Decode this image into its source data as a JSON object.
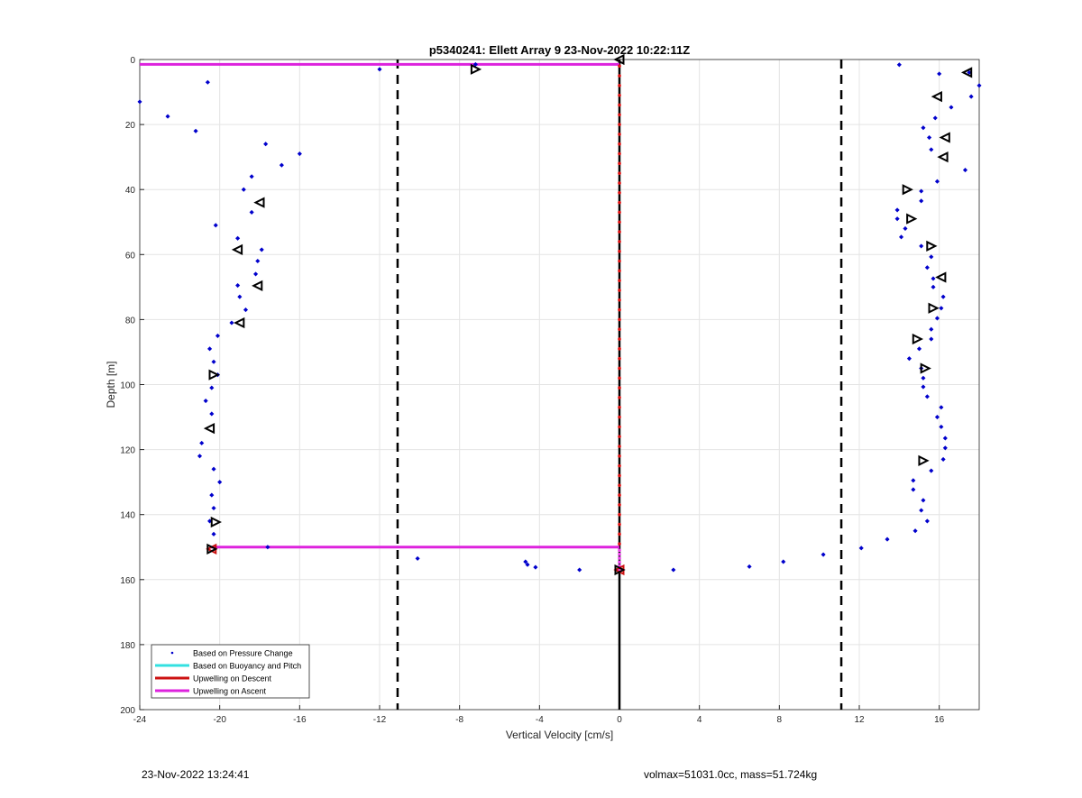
{
  "chart_data": {
    "type": "scatter",
    "title": "p5340241: Ellett Array 9 23-Nov-2022 10:22:11Z",
    "xlabel": "Vertical Velocity [cm/s]",
    "ylabel": "Depth [m]",
    "xlim": [
      -24,
      18
    ],
    "ylim": [
      0,
      200
    ],
    "y_reversed": true,
    "grid": true,
    "xticks": [
      -24,
      -20,
      -16,
      -12,
      -8,
      -4,
      0,
      4,
      8,
      12,
      16
    ],
    "yticks": [
      0,
      20,
      40,
      60,
      80,
      100,
      120,
      140,
      160,
      180,
      200
    ],
    "legend_position": "bottom-left",
    "legend": [
      {
        "label": "Based on Pressure Change",
        "color": "#0000cc",
        "kind": "dot"
      },
      {
        "label": "Based on Buoyancy and Pitch",
        "color": "#33e0e0",
        "kind": "line"
      },
      {
        "label": "Upwelling on Descent",
        "color": "#cc1111",
        "kind": "line"
      },
      {
        "label": "Upwelling on Ascent",
        "color": "#dd22dd",
        "kind": "line"
      }
    ],
    "threshold_lines": [
      -11.1,
      11.1
    ],
    "pressure_change_points": [
      [
        -20.6,
        7
      ],
      [
        -24,
        13
      ],
      [
        -22.6,
        17.5
      ],
      [
        -21.2,
        22
      ],
      [
        -17.7,
        26
      ],
      [
        -16,
        29
      ],
      [
        -16.9,
        32.5
      ],
      [
        -18.4,
        36
      ],
      [
        -18.8,
        40
      ],
      [
        -18.4,
        47
      ],
      [
        -20.2,
        51
      ],
      [
        -19.1,
        55
      ],
      [
        -17.9,
        58.5
      ],
      [
        -18.1,
        62
      ],
      [
        -18.2,
        66
      ],
      [
        -19.1,
        69.5
      ],
      [
        -19,
        73
      ],
      [
        -18.7,
        77
      ],
      [
        -19.4,
        81
      ],
      [
        -20.1,
        85
      ],
      [
        -20.5,
        89
      ],
      [
        -20.3,
        93
      ],
      [
        -20.1,
        97
      ],
      [
        -20.4,
        101
      ],
      [
        -20.7,
        105
      ],
      [
        -20.4,
        109
      ],
      [
        -20.9,
        118
      ],
      [
        -21,
        122
      ],
      [
        -20.3,
        126
      ],
      [
        -20,
        130
      ],
      [
        -20.4,
        134
      ],
      [
        -20.3,
        138
      ],
      [
        -20.5,
        142
      ],
      [
        -20.3,
        146
      ],
      [
        -17.6,
        150
      ],
      [
        -10.1,
        153.5
      ],
      [
        -4.7,
        154.5
      ],
      [
        -4.6,
        155.4
      ],
      [
        -4.2,
        156.2
      ],
      [
        -2,
        157
      ],
      [
        2.7,
        157
      ],
      [
        6.5,
        156
      ],
      [
        8.2,
        154.5
      ],
      [
        10.2,
        152.3
      ],
      [
        12.1,
        150.3
      ],
      [
        13.4,
        147.6
      ],
      [
        14.8,
        145
      ],
      [
        15.4,
        142
      ],
      [
        15.1,
        138.7
      ],
      [
        15.2,
        135.6
      ],
      [
        14.7,
        132.3
      ],
      [
        14.7,
        129.5
      ],
      [
        15.6,
        126.5
      ],
      [
        16.2,
        123
      ],
      [
        16.3,
        119.5
      ],
      [
        16.3,
        116.5
      ],
      [
        16.1,
        113
      ],
      [
        15.9,
        110
      ],
      [
        16.1,
        107
      ],
      [
        15.4,
        103.7
      ],
      [
        15.2,
        100.7
      ],
      [
        15.2,
        98
      ],
      [
        15.1,
        95
      ],
      [
        14.5,
        92
      ],
      [
        15,
        89
      ],
      [
        15.6,
        86
      ],
      [
        15.6,
        83
      ],
      [
        15.9,
        79.6
      ],
      [
        16.1,
        76.5
      ],
      [
        16.2,
        73
      ],
      [
        15.7,
        70
      ],
      [
        15.7,
        67.4
      ],
      [
        15.4,
        64
      ],
      [
        15.6,
        60.7
      ],
      [
        15.1,
        57.4
      ],
      [
        14.1,
        54.6
      ],
      [
        14.3,
        52
      ],
      [
        13.9,
        49
      ],
      [
        13.9,
        46.3
      ],
      [
        15.1,
        43.5
      ],
      [
        15.1,
        40.5
      ],
      [
        15.9,
        37.5
      ],
      [
        17.3,
        34
      ],
      [
        15.6,
        27.7
      ],
      [
        15.5,
        24
      ],
      [
        15.2,
        21
      ],
      [
        15.8,
        18
      ],
      [
        16.6,
        14.7
      ],
      [
        17.6,
        11.4
      ],
      [
        18,
        8
      ],
      [
        17.5,
        4
      ],
      [
        16,
        4.4
      ],
      [
        14,
        1.6
      ],
      [
        -7.2,
        1.5
      ],
      [
        -12,
        3
      ]
    ],
    "left_markers": [
      [
        0,
        0
      ],
      [
        17.4,
        4
      ],
      [
        15.9,
        11.4
      ],
      [
        16.3,
        24
      ],
      [
        16.2,
        30
      ],
      [
        16.1,
        67
      ],
      [
        -18,
        44
      ],
      [
        -19.1,
        58.5
      ],
      [
        -18.1,
        69.6
      ],
      [
        -19,
        81
      ],
      [
        -20.5,
        113.5
      ]
    ],
    "right_markers": [
      [
        -7.2,
        3
      ],
      [
        14.4,
        40
      ],
      [
        14.6,
        49
      ],
      [
        15.6,
        57.4
      ],
      [
        15.7,
        76.5
      ],
      [
        14.9,
        86
      ],
      [
        15.3,
        95
      ],
      [
        15.2,
        123.4
      ],
      [
        -20.3,
        97
      ],
      [
        -20.2,
        142.3
      ]
    ],
    "end_markers": [
      [
        -20.4,
        150.6
      ],
      [
        0,
        157
      ]
    ],
    "ascent_upwelling_segments": [
      {
        "depth": 1.5,
        "from": -24,
        "to": 0
      },
      {
        "depth": 150,
        "from": -20.5,
        "to": 0
      }
    ],
    "descent_upwelling": {
      "value": 0,
      "depth_from": 2,
      "depth_to": 150,
      "step": 3
    }
  },
  "footer": {
    "timestamp": "23-Nov-2022 13:24:41",
    "info": "volmax=51031.0cc, mass=51.724kg"
  }
}
